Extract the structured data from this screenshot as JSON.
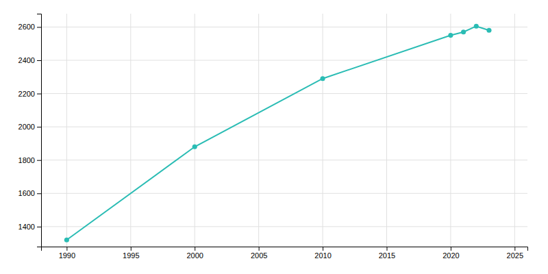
{
  "chart_data": {
    "type": "line",
    "x": [
      1990,
      2000,
      2010,
      2020,
      2021,
      2022,
      2023
    ],
    "values": [
      1320,
      1880,
      2290,
      2550,
      2570,
      2605,
      2580
    ],
    "color": "#2abcb4",
    "marker": "circle",
    "xlim": [
      1988,
      2026
    ],
    "ylim": [
      1280,
      2680
    ],
    "xticks": [
      1990,
      1995,
      2000,
      2005,
      2010,
      2015,
      2020,
      2025
    ],
    "yticks": [
      1400,
      1600,
      1800,
      2000,
      2200,
      2400,
      2600
    ],
    "grid": true
  }
}
